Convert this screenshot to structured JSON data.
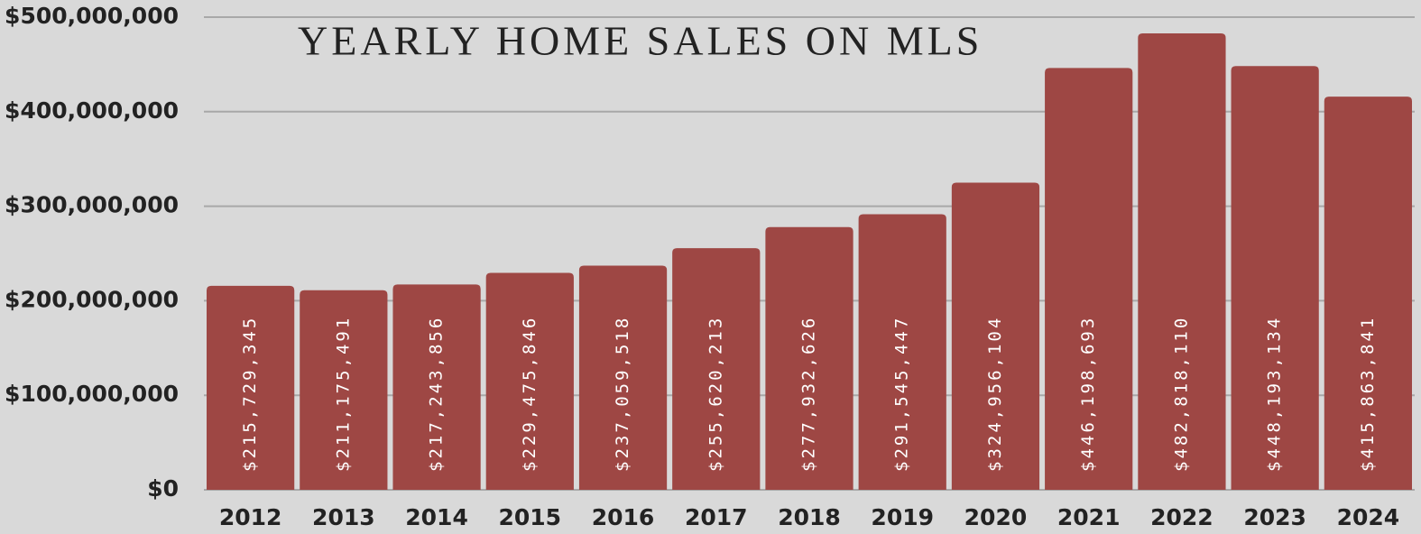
{
  "chart_data": {
    "type": "bar",
    "title": "YEARLY HOME SALES ON MLS",
    "categories": [
      "2012",
      "2013",
      "2014",
      "2015",
      "2016",
      "2017",
      "2018",
      "2019",
      "2020",
      "2021",
      "2022",
      "2023",
      "2024"
    ],
    "values": [
      215729345,
      211175491,
      217243856,
      229475846,
      237059518,
      255620213,
      277932626,
      291545447,
      324956104,
      446198693,
      482818110,
      448193134,
      415863841
    ],
    "value_labels": [
      "$215,729,345",
      "$211,175,491",
      "$217,243,856",
      "$229,475,846",
      "$237,059,518",
      "$255,620,213",
      "$277,932,626",
      "$291,545,447",
      "$324,956,104",
      "$446,198,693",
      "$482,818,110",
      "$448,193,134",
      "$415,863,841"
    ],
    "color": "#9e4744",
    "ylim": [
      0,
      500000000
    ],
    "yticks": [
      {
        "value": 0,
        "label": "$0"
      },
      {
        "value": 100000000,
        "label": "$100,000,000"
      },
      {
        "value": 200000000,
        "label": "$200,000,000"
      },
      {
        "value": 300000000,
        "label": "$300,000,000"
      },
      {
        "value": 400000000,
        "label": "$400,000,000"
      },
      {
        "value": 500000000,
        "label": "$500,000,000"
      }
    ],
    "grid": true
  }
}
